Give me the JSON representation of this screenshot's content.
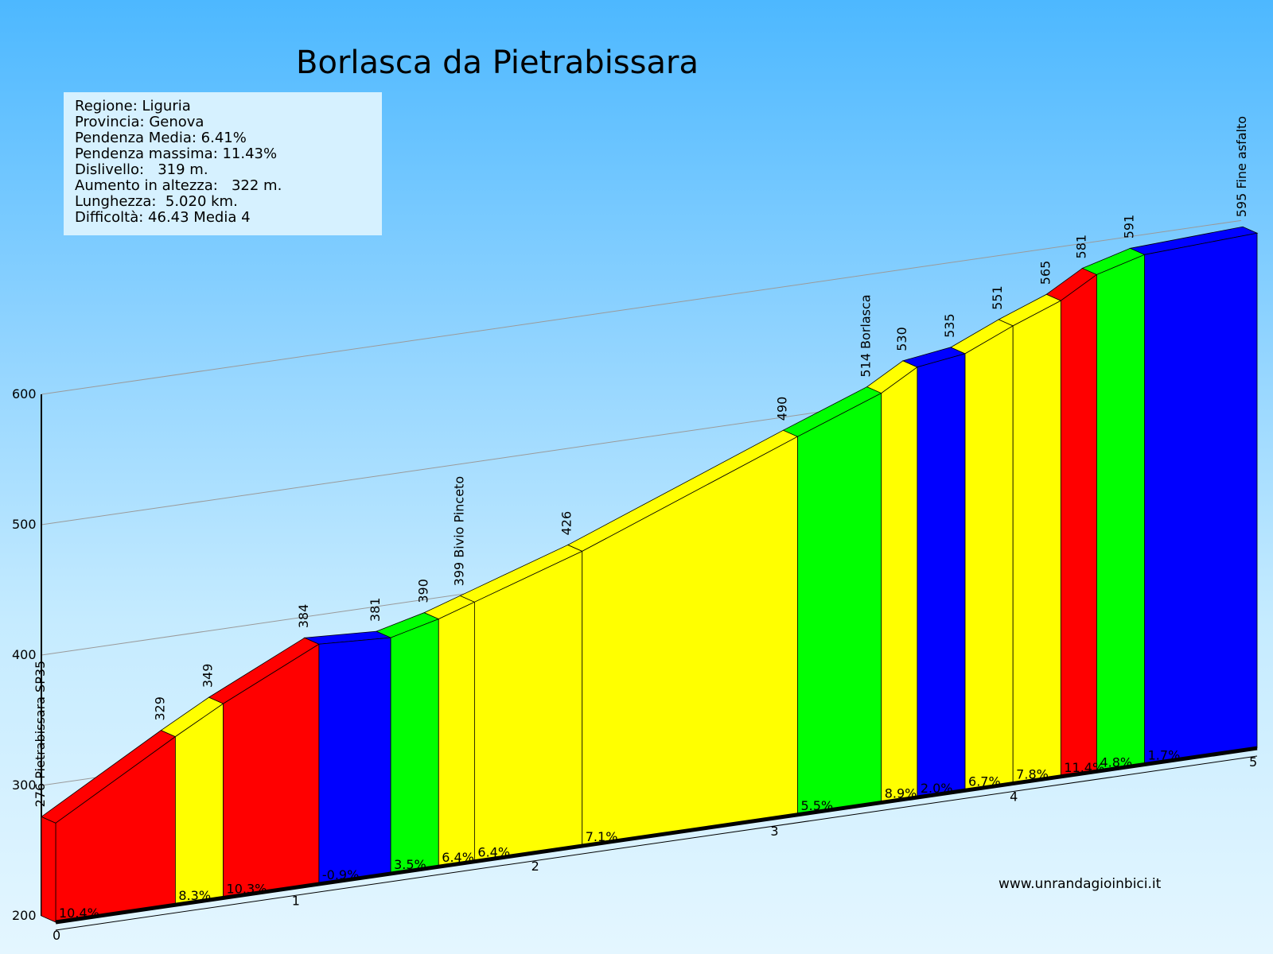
{
  "title": "Borlasca da Pietrabissara",
  "info": [
    "Regione: Liguria",
    "Provincia: Genova",
    "Pendenza Media: 6.41%",
    "Pendenza massima: 11.43%",
    "Dislivello:   319 m.",
    "Aumento in altezza:   322 m.",
    "Lunghezza:  5.020 km.",
    "Difficoltà: 46.43 Media 4"
  ],
  "website": "www.unrandagioinbici.it",
  "colors": {
    "red": "#ff0000",
    "yellow": "#ffff00",
    "blue": "#0000ff",
    "green": "#00ff00"
  },
  "chart_data": {
    "type": "area",
    "title": "Borlasca da Pietrabissara",
    "xlabel": "",
    "ylabel": "",
    "ylim": [
      200,
      600
    ],
    "y_ticks": [
      200,
      300,
      400,
      500,
      600
    ],
    "x_ticks": [
      0,
      1,
      2,
      3,
      4,
      5
    ],
    "xlim": [
      0,
      5.02
    ],
    "points": [
      {
        "km": 0.0,
        "elev": 276,
        "label": "276 Pietrabissara SP35"
      },
      {
        "km": 0.5,
        "elev": 329,
        "label": "329"
      },
      {
        "km": 0.7,
        "elev": 349,
        "label": "349"
      },
      {
        "km": 1.1,
        "elev": 384,
        "label": "384"
      },
      {
        "km": 1.4,
        "elev": 381,
        "label": "381"
      },
      {
        "km": 1.6,
        "elev": 390,
        "label": "390"
      },
      {
        "km": 1.75,
        "elev": 399,
        "label": "399 Bivio Pinceto"
      },
      {
        "km": 2.2,
        "elev": 426,
        "label": "426"
      },
      {
        "km": 3.1,
        "elev": 490,
        "label": "490"
      },
      {
        "km": 3.45,
        "elev": 514,
        "label": "514 Borlasca"
      },
      {
        "km": 3.6,
        "elev": 530,
        "label": "530"
      },
      {
        "km": 3.8,
        "elev": 535,
        "label": "535"
      },
      {
        "km": 4.0,
        "elev": 551,
        "label": "551"
      },
      {
        "km": 4.2,
        "elev": 565,
        "label": "565"
      },
      {
        "km": 4.35,
        "elev": 581,
        "label": "581"
      },
      {
        "km": 4.55,
        "elev": 591,
        "label": "591"
      },
      {
        "km": 5.02,
        "elev": 595,
        "label": "595 Fine asfalto"
      }
    ],
    "segments": [
      {
        "slope": "10.4%",
        "color": "red"
      },
      {
        "slope": "8.3%",
        "color": "yellow"
      },
      {
        "slope": "10.3%",
        "color": "red"
      },
      {
        "slope": "-0.9%",
        "color": "blue"
      },
      {
        "slope": "3.5%",
        "color": "green"
      },
      {
        "slope": "6.4%",
        "color": "yellow"
      },
      {
        "slope": "6.4%",
        "color": "yellow"
      },
      {
        "slope": "7.1%",
        "color": "yellow"
      },
      {
        "slope": "5.5%",
        "color": "green"
      },
      {
        "slope": "8.9%",
        "color": "yellow"
      },
      {
        "slope": "2.0%",
        "color": "blue"
      },
      {
        "slope": "6.7%",
        "color": "yellow"
      },
      {
        "slope": "7.8%",
        "color": "yellow"
      },
      {
        "slope": "11.4%",
        "color": "red"
      },
      {
        "slope": "4.8%",
        "color": "green"
      },
      {
        "slope": "1.7%",
        "color": "blue"
      }
    ]
  }
}
